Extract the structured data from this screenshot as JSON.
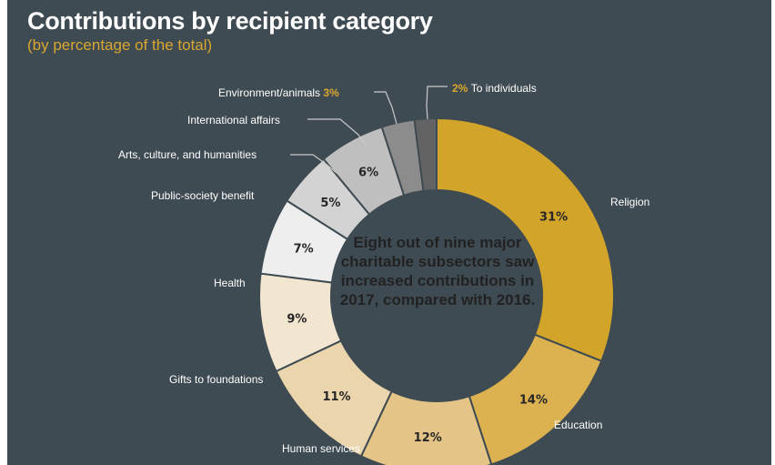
{
  "title": "Contributions by recipient category",
  "subtitle": "(by percentage of the total)",
  "center_note": "Eight out of nine major charitable subsectors saw increased contributions in 2017, compared with 2016.",
  "chart_data": {
    "type": "pie",
    "title": "Contributions by recipient category",
    "subtitle": "(by percentage of the total)",
    "unit": "%",
    "slices": [
      {
        "category": "Religion",
        "value": 31,
        "label": "31%",
        "color": "#d3a42a"
      },
      {
        "category": "Education",
        "value": 14,
        "label": "14%",
        "color": "#dcb251"
      },
      {
        "category": "Human services",
        "value": 12,
        "label": "12%",
        "color": "#e4c487"
      },
      {
        "category": "Gifts to foundations",
        "value": 11,
        "label": "11%",
        "color": "#ebd5ac"
      },
      {
        "category": "Health",
        "value": 9,
        "label": "9%",
        "color": "#f2e6d0"
      },
      {
        "category": "Public-society benefit",
        "value": 7,
        "label": "7%",
        "color": "#eeeeee"
      },
      {
        "category": "Arts, culture, and humanities",
        "value": 5,
        "label": "5%",
        "color": "#d3d3d3"
      },
      {
        "category": "International affairs",
        "value": 6,
        "label": "6%",
        "color": "#bfbfbf"
      },
      {
        "category": "Environment/animals",
        "value": 3,
        "label": "3%",
        "color": "#8c8c8c"
      },
      {
        "category": "To individuals",
        "value": 2,
        "label": "2%",
        "color": "#636363"
      }
    ],
    "outside_percent_labels": {
      "Environment/animals": "3%",
      "To individuals": "2%"
    },
    "accent_color": "#d9a730",
    "background_color": "#3f4b52"
  }
}
